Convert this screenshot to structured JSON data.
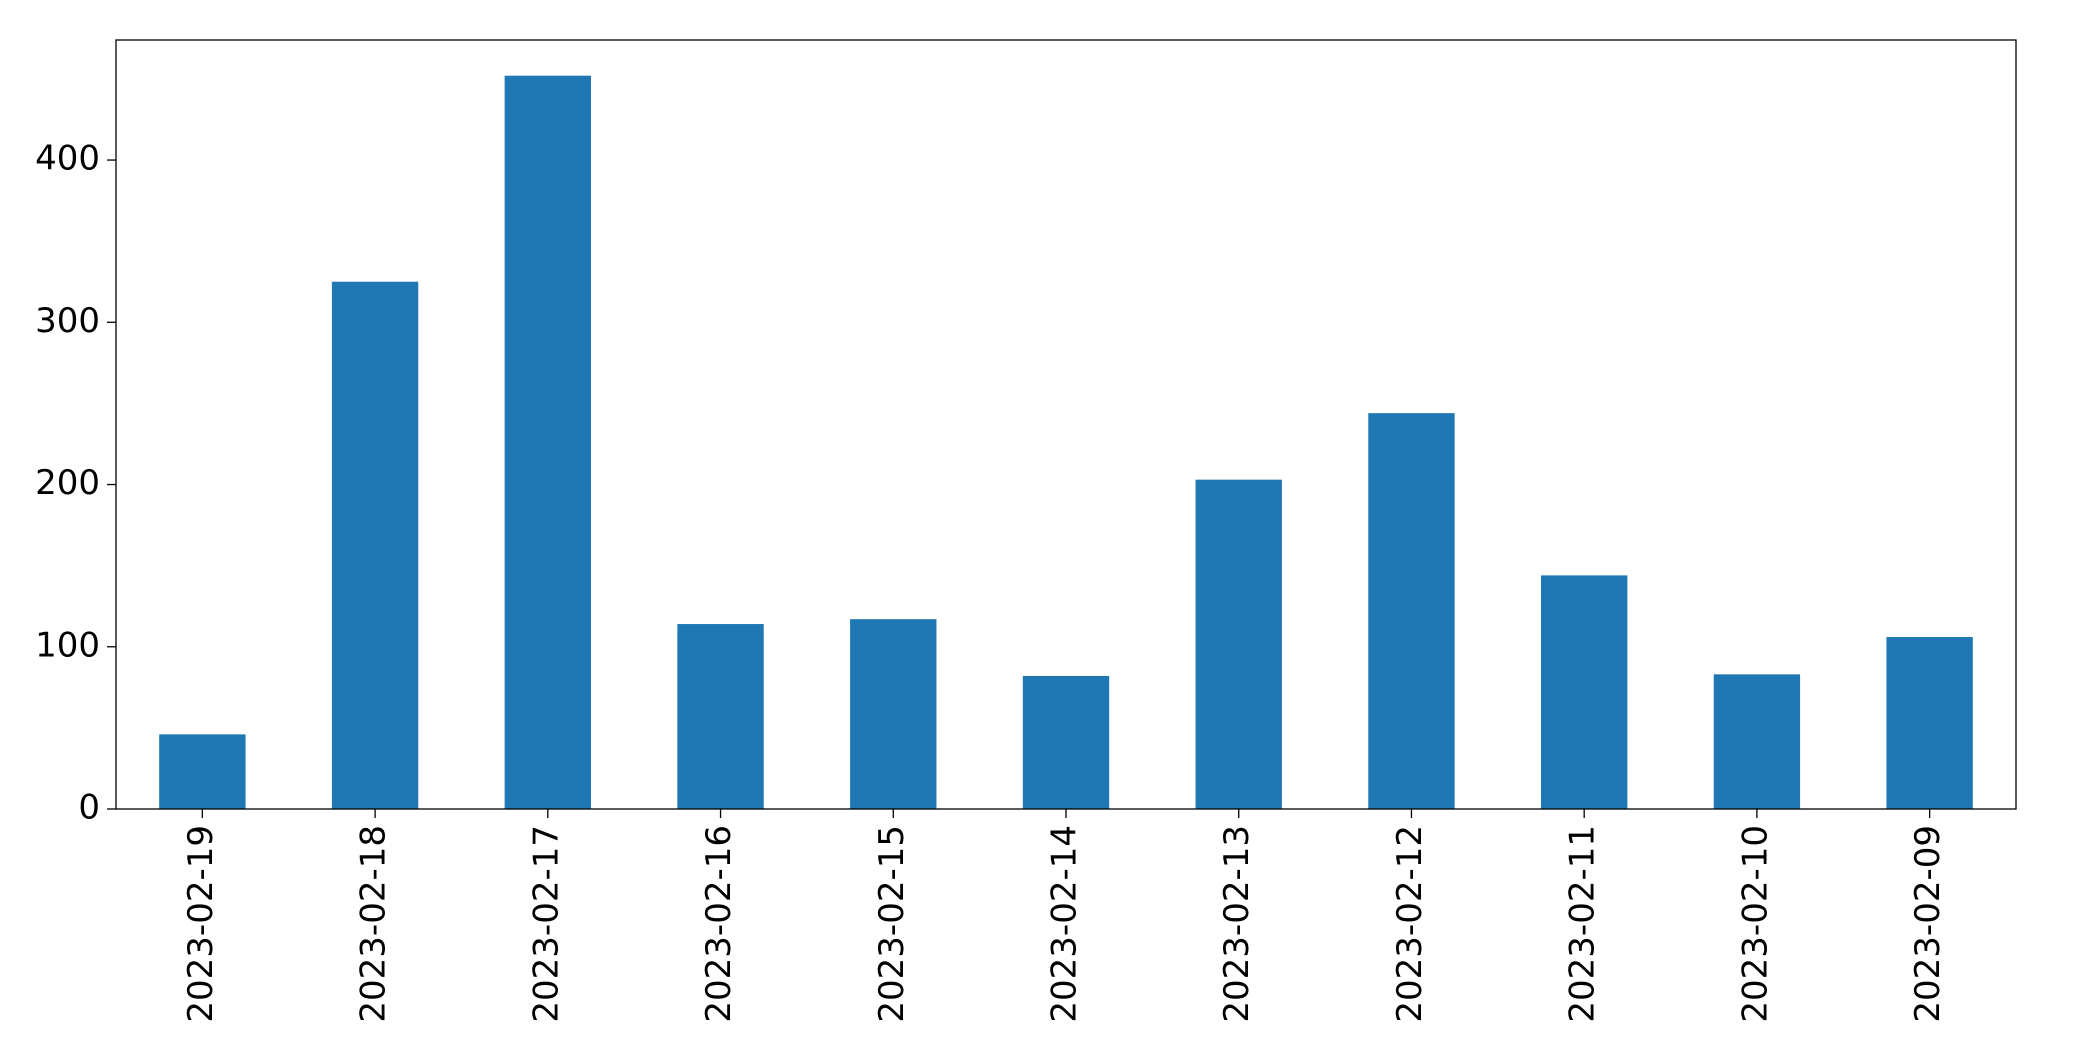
{
  "chart_data": {
    "type": "bar",
    "categories": [
      "2023-02-19",
      "2023-02-18",
      "2023-02-17",
      "2023-02-16",
      "2023-02-15",
      "2023-02-14",
      "2023-02-13",
      "2023-02-12",
      "2023-02-11",
      "2023-02-10",
      "2023-02-09"
    ],
    "values": [
      46,
      325,
      452,
      114,
      117,
      82,
      203,
      244,
      144,
      83,
      106
    ],
    "color": "#1f77b4",
    "ylim": [
      0,
      474
    ],
    "yticks": [
      0,
      100,
      200,
      300,
      400
    ],
    "grid": false
  }
}
